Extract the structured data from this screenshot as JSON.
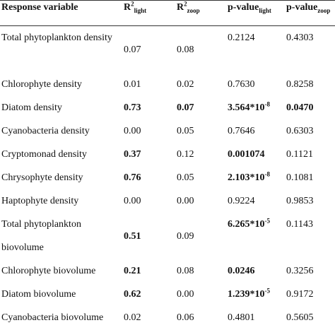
{
  "table": {
    "header": [
      {
        "base": "Response variable"
      },
      {
        "base": "R",
        "sup": "2",
        "sub": "light"
      },
      {
        "base": "R",
        "sup": "2",
        "sub": "zoop"
      },
      {
        "base": "p-value",
        "sub": "light"
      },
      {
        "base": "p-value",
        "sub": "zoop"
      }
    ],
    "rows": [
      [
        {
          "base": "Total phytoplankton density"
        },
        {
          "base": "0.07"
        },
        {
          "base": "0.08"
        },
        {
          "base": "0.2124"
        },
        {
          "base": "0.4303"
        }
      ],
      [
        {
          "base": "Chlorophyte density"
        },
        {
          "base": "0.01"
        },
        {
          "base": "0.02"
        },
        {
          "base": "0.7630"
        },
        {
          "base": "0.8258"
        }
      ],
      [
        {
          "base": "Diatom density"
        },
        {
          "base": "0.73",
          "bold": true
        },
        {
          "base": "0.07",
          "bold": true
        },
        {
          "base": "3.564*10",
          "sup": "-8",
          "bold": true
        },
        {
          "base": "0.0470",
          "bold": true
        }
      ],
      [
        {
          "base": "Cyanobacteria density"
        },
        {
          "base": "0.00"
        },
        {
          "base": "0.05"
        },
        {
          "base": "0.7646"
        },
        {
          "base": "0.6303"
        }
      ],
      [
        {
          "base": "Cryptomonad density"
        },
        {
          "base": "0.37",
          "bold": true
        },
        {
          "base": "0.12"
        },
        {
          "base": "0.001074",
          "bold": true
        },
        {
          "base": "0.1121"
        }
      ],
      [
        {
          "base": "Chrysophyte density"
        },
        {
          "base": "0.76",
          "bold": true
        },
        {
          "base": "0.05"
        },
        {
          "base": "2.103*10",
          "sup": "-8",
          "bold": true
        },
        {
          "base": "0.1081"
        }
      ],
      [
        {
          "base": "Haptophyte density"
        },
        {
          "base": "0.00"
        },
        {
          "base": "0.00"
        },
        {
          "base": "0.9224"
        },
        {
          "base": "0.9853"
        }
      ],
      [
        {
          "base": "Total phytoplankton biovolume"
        },
        {
          "base": "0.51",
          "bold": true
        },
        {
          "base": "0.09"
        },
        {
          "base": "6.265*10",
          "sup": "-5",
          "bold": true
        },
        {
          "base": "0.1143"
        }
      ],
      [
        {
          "base": "Chlorophyte biovolume"
        },
        {
          "base": "0.21",
          "bold": true
        },
        {
          "base": "0.08"
        },
        {
          "base": "0.0246",
          "bold": true
        },
        {
          "base": "0.3256"
        }
      ],
      [
        {
          "base": "Diatom biovolume"
        },
        {
          "base": "0.62",
          "bold": true
        },
        {
          "base": "0.00"
        },
        {
          "base": "1.239*10",
          "sup": "-5",
          "bold": true
        },
        {
          "base": "0.9172"
        }
      ],
      [
        {
          "base": "Cyanobacteria biovolume"
        },
        {
          "base": "0.02"
        },
        {
          "base": "0.06"
        },
        {
          "base": "0.4801"
        },
        {
          "base": "0.5605"
        }
      ]
    ]
  }
}
